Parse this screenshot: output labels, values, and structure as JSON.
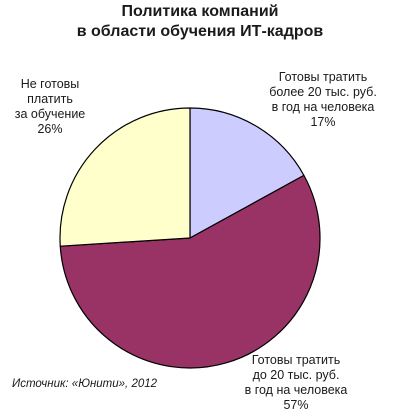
{
  "chart_data": {
    "type": "pie",
    "title_line1": "Политика компаний",
    "title_line2": "в области обучения ИТ-кадров",
    "slices": [
      {
        "label_lines": [
          "Готовы тратить",
          "более 20 тыс. руб.",
          "в год на человека"
        ],
        "value": 17,
        "pct_text": "17%",
        "color": "#ccccff"
      },
      {
        "label_lines": [
          "Готовы тратить",
          "до 20 тыс. руб.",
          "в год на человека"
        ],
        "value": 57,
        "pct_text": "57%",
        "color": "#993366"
      },
      {
        "label_lines": [
          "Не готовы",
          "платить",
          "за обучение"
        ],
        "value": 26,
        "pct_text": "26%",
        "color": "#ffffcc"
      }
    ],
    "source": "Источник: «Юнити», 2012"
  }
}
